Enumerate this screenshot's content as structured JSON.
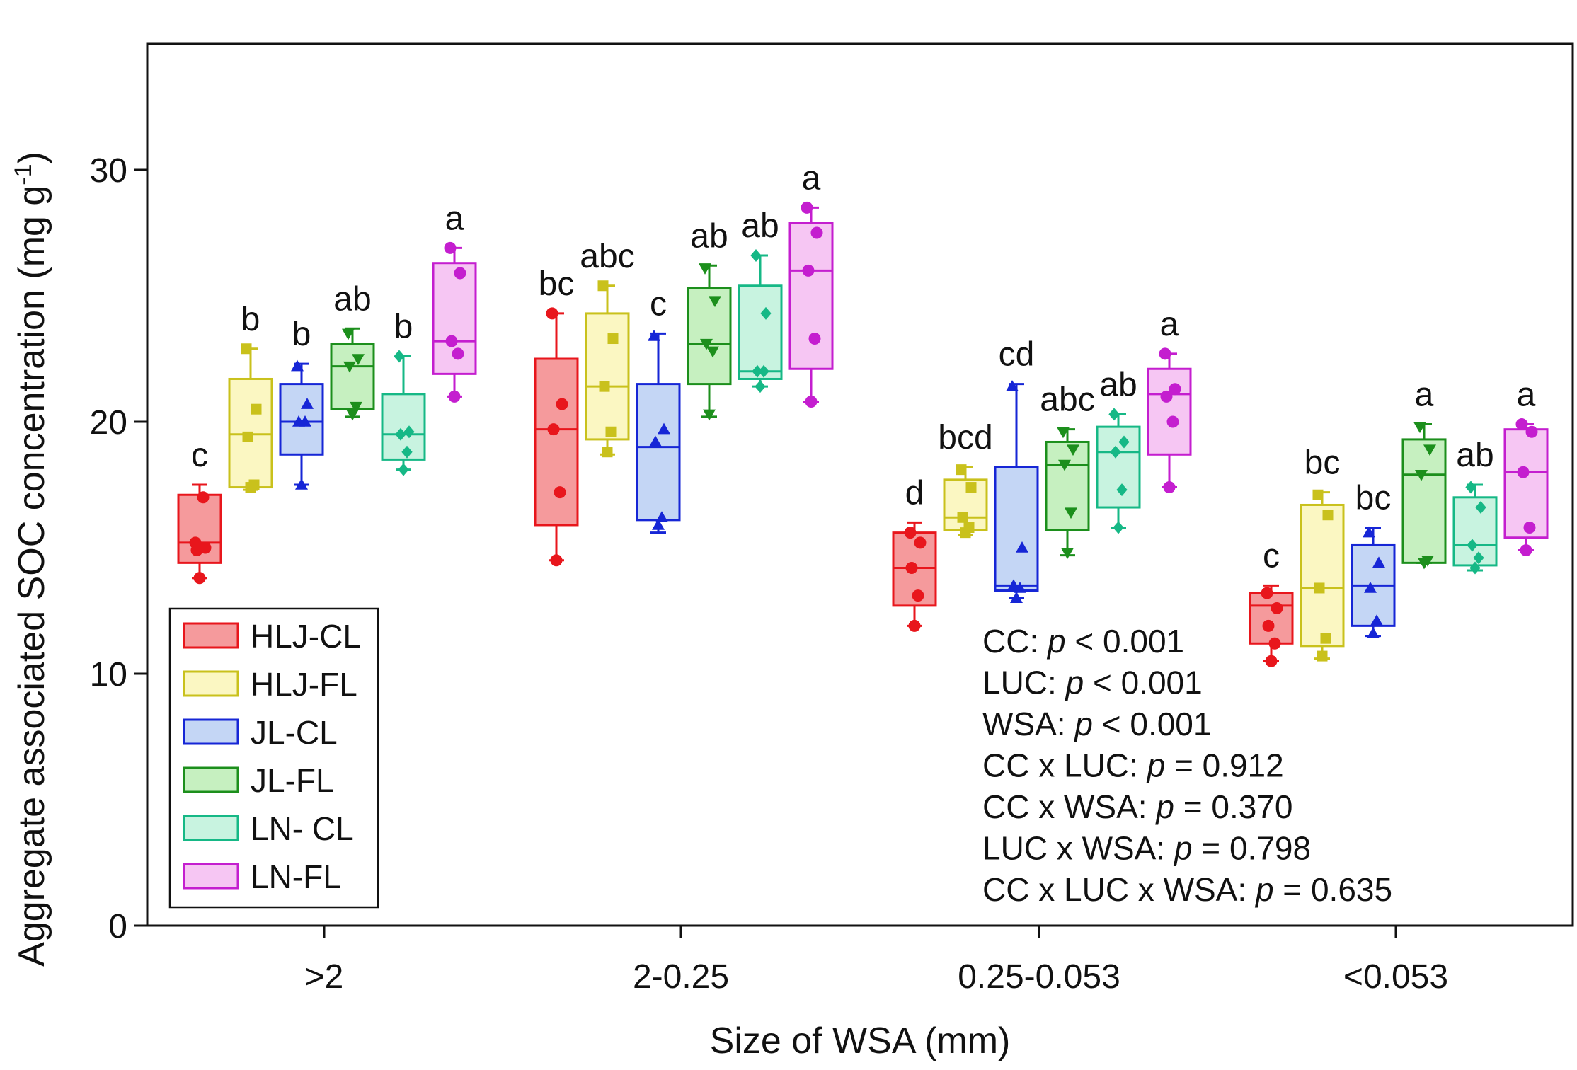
{
  "chart_data": {
    "type": "box",
    "ylabel": "Aggregate associated SOC concentration (mg g",
    "ylabel_sup": "-1",
    "ylabel_close": ")",
    "xlabel": "Size of WSA (mm)",
    "ylim": [
      0,
      35
    ],
    "yticks": [
      0,
      10,
      20,
      30
    ],
    "categories": [
      ">2",
      "2-0.25",
      "0.25-0.053",
      "<0.053"
    ],
    "series": [
      {
        "name": "HLJ-CL",
        "color": "#e8161c",
        "fill": "#f59a9c",
        "marker": "circle",
        "boxes": [
          {
            "min": 13.8,
            "q1": 14.4,
            "median": 15.2,
            "q3": 17.1,
            "max": 17.5,
            "points": [
              15.2,
              15.0,
              14.9,
              17.0,
              13.8
            ],
            "letter": "c"
          },
          {
            "min": 14.5,
            "q1": 15.9,
            "median": 19.7,
            "q3": 22.5,
            "max": 24.3,
            "points": [
              24.3,
              20.7,
              19.7,
              17.2,
              14.5
            ],
            "letter": "bc"
          },
          {
            "min": 11.9,
            "q1": 12.7,
            "median": 14.2,
            "q3": 15.6,
            "max": 16.0,
            "points": [
              15.6,
              15.2,
              14.2,
              13.1,
              11.9
            ],
            "letter": "d"
          },
          {
            "min": 10.5,
            "q1": 11.2,
            "median": 12.7,
            "q3": 13.2,
            "max": 13.5,
            "points": [
              13.2,
              12.6,
              11.9,
              11.2,
              10.5
            ],
            "letter": "c"
          }
        ]
      },
      {
        "name": "HLJ-FL",
        "color": "#c9c11c",
        "fill": "#fbf7c2",
        "marker": "square",
        "boxes": [
          {
            "min": 17.3,
            "q1": 17.4,
            "median": 19.5,
            "q3": 21.7,
            "max": 22.9,
            "points": [
              22.9,
              20.5,
              19.4,
              17.5,
              17.4
            ],
            "letter": "b"
          },
          {
            "min": 18.7,
            "q1": 19.3,
            "median": 21.4,
            "q3": 24.3,
            "max": 25.4,
            "points": [
              25.4,
              23.3,
              21.4,
              19.6,
              18.8
            ],
            "letter": "abc"
          },
          {
            "min": 15.5,
            "q1": 15.7,
            "median": 16.2,
            "q3": 17.7,
            "max": 18.2,
            "points": [
              18.1,
              17.4,
              16.2,
              15.8,
              15.6
            ],
            "letter": "bcd"
          },
          {
            "min": 10.6,
            "q1": 11.1,
            "median": 13.4,
            "q3": 16.7,
            "max": 17.2,
            "points": [
              17.1,
              16.3,
              13.4,
              11.4,
              10.7
            ],
            "letter": "bc"
          }
        ]
      },
      {
        "name": "JL-CL",
        "color": "#1626d6",
        "fill": "#c4d6f5",
        "marker": "triangle-up",
        "boxes": [
          {
            "min": 17.5,
            "q1": 18.7,
            "median": 20.0,
            "q3": 21.5,
            "max": 22.3,
            "points": [
              22.2,
              20.7,
              20.0,
              20.0,
              17.5
            ],
            "letter": "b"
          },
          {
            "min": 15.6,
            "q1": 16.1,
            "median": 19.0,
            "q3": 21.5,
            "max": 23.5,
            "points": [
              23.4,
              19.7,
              19.2,
              16.2,
              15.9
            ],
            "letter": "c"
          },
          {
            "min": 13.0,
            "q1": 13.3,
            "median": 13.5,
            "q3": 18.2,
            "max": 21.5,
            "points": [
              21.4,
              15.0,
              13.5,
              13.4,
              13.0
            ],
            "letter": "cd"
          },
          {
            "min": 11.5,
            "q1": 11.9,
            "median": 13.5,
            "q3": 15.1,
            "max": 15.8,
            "points": [
              15.6,
              14.4,
              13.4,
              12.1,
              11.6
            ],
            "letter": "bc"
          }
        ]
      },
      {
        "name": "JL-FL",
        "color": "#1c8f1c",
        "fill": "#c6f0c0",
        "marker": "triangle-down",
        "boxes": [
          {
            "min": 20.2,
            "q1": 20.5,
            "median": 22.2,
            "q3": 23.1,
            "max": 23.7,
            "points": [
              23.5,
              22.5,
              22.2,
              20.6,
              20.3
            ],
            "letter": "ab"
          },
          {
            "min": 20.2,
            "q1": 21.5,
            "median": 23.1,
            "q3": 25.3,
            "max": 26.2,
            "points": [
              26.1,
              24.8,
              23.1,
              22.8,
              20.3
            ],
            "letter": "ab"
          },
          {
            "min": 14.7,
            "q1": 15.7,
            "median": 18.3,
            "q3": 19.2,
            "max": 19.7,
            "points": [
              19.6,
              18.9,
              18.3,
              16.4,
              14.8
            ],
            "letter": "abc"
          },
          {
            "min": 14.4,
            "q1": 14.4,
            "median": 17.9,
            "q3": 19.3,
            "max": 19.9,
            "points": [
              19.8,
              18.9,
              17.9,
              14.5,
              14.4
            ],
            "letter": "a"
          }
        ]
      },
      {
        "name": "LN- CL",
        "color": "#16b886",
        "fill": "#c8f3e0",
        "marker": "diamond",
        "boxes": [
          {
            "min": 18.1,
            "q1": 18.5,
            "median": 19.5,
            "q3": 21.1,
            "max": 22.6,
            "points": [
              22.6,
              19.6,
              19.5,
              18.8,
              18.1
            ],
            "letter": "b"
          },
          {
            "min": 21.4,
            "q1": 21.7,
            "median": 22.0,
            "q3": 25.4,
            "max": 26.6,
            "points": [
              26.6,
              24.3,
              22.0,
              22.0,
              21.4
            ],
            "letter": "ab"
          },
          {
            "min": 15.8,
            "q1": 16.6,
            "median": 18.8,
            "q3": 19.8,
            "max": 20.3,
            "points": [
              20.3,
              19.2,
              18.8,
              17.3,
              15.8
            ],
            "letter": "ab"
          },
          {
            "min": 14.1,
            "q1": 14.3,
            "median": 15.1,
            "q3": 17.0,
            "max": 17.5,
            "points": [
              17.4,
              16.6,
              15.1,
              14.6,
              14.2
            ],
            "letter": "ab"
          }
        ]
      },
      {
        "name": "LN-FL",
        "color": "#c41ecf",
        "fill": "#f6c6f3",
        "marker": "circle",
        "boxes": [
          {
            "min": 21.0,
            "q1": 21.9,
            "median": 23.2,
            "q3": 26.3,
            "max": 26.9,
            "points": [
              26.9,
              25.9,
              23.2,
              22.7,
              21.0
            ],
            "letter": "a"
          },
          {
            "min": 20.8,
            "q1": 22.1,
            "median": 26.0,
            "q3": 27.9,
            "max": 28.5,
            "points": [
              28.5,
              27.5,
              26.0,
              23.3,
              20.8
            ],
            "letter": "a"
          },
          {
            "min": 17.4,
            "q1": 18.7,
            "median": 21.1,
            "q3": 22.1,
            "max": 22.7,
            "points": [
              22.7,
              21.3,
              21.0,
              20.0,
              17.4
            ],
            "letter": "a"
          },
          {
            "min": 14.9,
            "q1": 15.4,
            "median": 18.0,
            "q3": 19.7,
            "max": 19.9,
            "points": [
              19.9,
              19.6,
              18.0,
              15.8,
              14.9
            ],
            "letter": "a"
          }
        ]
      }
    ],
    "stats": [
      {
        "label": "CC: ",
        "p": "p",
        "rest": " < 0.001"
      },
      {
        "label": "LUC: ",
        "p": "p",
        "rest": " < 0.001"
      },
      {
        "label": "WSA: ",
        "p": "p",
        "rest": " < 0.001"
      },
      {
        "label": "CC x LUC: ",
        "p": "p",
        "rest": " = 0.912"
      },
      {
        "label": "CC x WSA: ",
        "p": "p",
        "rest": " = 0.370"
      },
      {
        "label": "LUC x WSA: ",
        "p": "p",
        "rest": " = 0.798"
      },
      {
        "label": "CC x LUC x WSA: ",
        "p": "p",
        "rest": " = 0.635"
      }
    ]
  }
}
